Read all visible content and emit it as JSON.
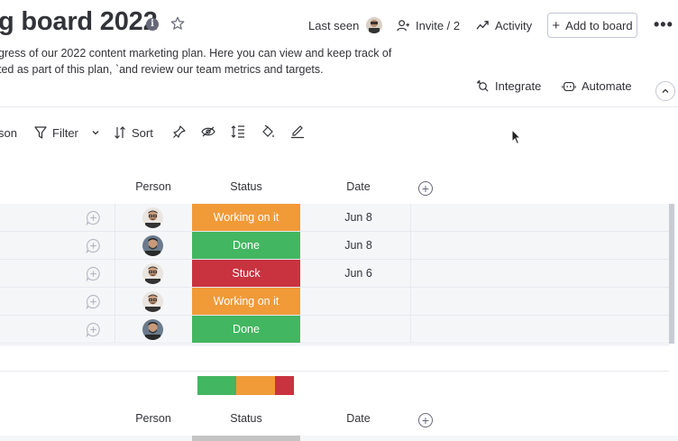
{
  "header": {
    "title": "g board 2022",
    "description_line1": "gress of our 2022 content marketing plan. Here you can view and keep track of",
    "description_line2": "ted as part of this plan, `and review our team metrics and targets.",
    "last_seen_label": "Last seen",
    "invite_label": "Invite / 2",
    "activity_label": "Activity",
    "add_to_board_label": "Add to board",
    "integrate_label": "Integrate",
    "automate_label": "Automate"
  },
  "toolbar": {
    "person_label": "son",
    "filter_label": "Filter",
    "sort_label": "Sort"
  },
  "columns": {
    "person": "Person",
    "status": "Status",
    "date": "Date"
  },
  "colors": {
    "working": "#fdab3d",
    "done": "#00c875",
    "stuck": "#e2445c"
  },
  "rows": [
    {
      "status": "Working on it",
      "status_color": "#f09a38",
      "date": "Jun 8",
      "avatar": "man-glasses"
    },
    {
      "status": "Done",
      "status_color": "#43b661",
      "date": "Jun 8",
      "avatar": "man-beard"
    },
    {
      "status": "Stuck",
      "status_color": "#c8333f",
      "date": "Jun 6",
      "avatar": "man-glasses"
    },
    {
      "status": "Working on it",
      "status_color": "#f09a38",
      "date": "",
      "avatar": "man-glasses"
    },
    {
      "status": "Done",
      "status_color": "#43b661",
      "date": "",
      "avatar": "man-beard"
    }
  ],
  "summary": [
    {
      "label": "Done",
      "fraction": 0.4,
      "color": "#43b661"
    },
    {
      "label": "Working on it",
      "fraction": 0.4,
      "color": "#f09a38"
    },
    {
      "label": "Stuck",
      "fraction": 0.2,
      "color": "#c8333f"
    }
  ]
}
